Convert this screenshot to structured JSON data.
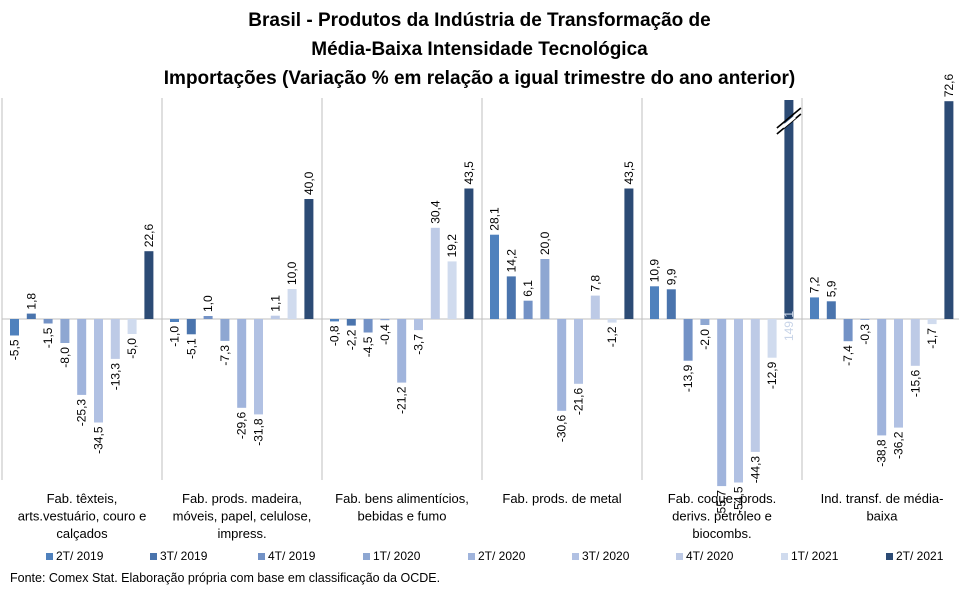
{
  "chart_data": {
    "type": "bar",
    "title_lines": [
      "Brasil - Produtos da Indústria de Transformação de",
      "Média-Baixa Intensidade Tecnológica",
      "Importações (Variação % em relação a igual trimestre do ano anterior)"
    ],
    "series": [
      {
        "name": "2T/ 2019",
        "color": "#4f81bd"
      },
      {
        "name": "3T/ 2019",
        "color": "#4a74ad"
      },
      {
        "name": "4T/ 2019",
        "color": "#7392c6"
      },
      {
        "name": "1T/ 2020",
        "color": "#8ea7d2"
      },
      {
        "name": "2T/ 2020",
        "color": "#a0b4dc"
      },
      {
        "name": "3T/ 2020",
        "color": "#b1c1e3"
      },
      {
        "name": "4T/ 2020",
        "color": "#bdcae6"
      },
      {
        "name": "1T/ 2021",
        "color": "#d0dbee"
      },
      {
        "name": "2T/ 2021",
        "color": "#2c4b75"
      }
    ],
    "groups": [
      {
        "label_lines": [
          "Fab. têxteis,",
          "arts.vestuário, couro e",
          "calçados"
        ],
        "values": [
          -5.5,
          1.8,
          -1.5,
          -8.0,
          -25.3,
          -34.5,
          -13.3,
          -5.0,
          22.6
        ],
        "labels": [
          "-5,5",
          "1,8",
          "-1,5",
          "-8,0",
          "-25,3",
          "-34,5",
          "-13,3",
          "-5,0",
          "22,6"
        ]
      },
      {
        "label_lines": [
          "Fab. prods. madeira,",
          "móveis, papel, celulose,",
          "impress."
        ],
        "values": [
          -1.0,
          -5.1,
          1.0,
          -7.3,
          -29.6,
          -31.8,
          1.1,
          10.0,
          40.0
        ],
        "labels": [
          "-1,0",
          "-5,1",
          "1,0",
          "-7,3",
          "-29,6",
          "-31,8",
          "1,1",
          "10,0",
          "40,0"
        ]
      },
      {
        "label_lines": [
          "Fab. bens alimentícios,",
          "bebidas e fumo"
        ],
        "values": [
          -0.8,
          -2.2,
          -4.5,
          -0.4,
          -21.2,
          -3.7,
          30.4,
          19.2,
          43.5
        ],
        "labels": [
          "-0,8",
          "-2,2",
          "-4,5",
          "-0,4",
          "-21,2",
          "-3,7",
          "30,4",
          "19,2",
          "43,5"
        ]
      },
      {
        "label_lines": [
          "Fab. prods. de metal"
        ],
        "values": [
          28.1,
          14.2,
          6.1,
          20.0,
          -30.6,
          -21.6,
          7.8,
          -1.2,
          43.5
        ],
        "labels": [
          "28,1",
          "14,2",
          "6,1",
          "20,0",
          "-30,6",
          "-21,6",
          "7,8",
          "-1,2",
          "43,5"
        ]
      },
      {
        "label_lines": [
          "Fab. coque, prods.",
          "derivs. petróleo e",
          "biocombs."
        ],
        "values": [
          10.9,
          9.9,
          -13.9,
          -2.0,
          -55.7,
          -54.5,
          -44.3,
          -12.9,
          149.1
        ],
        "labels": [
          "10,9",
          "9,9",
          "-13,9",
          "-2,0",
          "-55,7",
          "-54,5",
          "-44,3",
          "-12,9",
          "149,1"
        ],
        "axis_break": true
      },
      {
        "label_lines": [
          "Ind. transf. de média-",
          "baixa"
        ],
        "values": [
          7.2,
          5.9,
          -7.4,
          -0.3,
          -38.8,
          -36.2,
          -15.6,
          -1.7,
          72.6
        ],
        "labels": [
          "7,2",
          "5,9",
          "-7,4",
          "-0,3",
          "-38,8",
          "-36,2",
          "-15,6",
          "-1,7",
          "72,6"
        ]
      }
    ],
    "legend_position": "bottom",
    "grid": false
  },
  "source_text": "Fonte: Comex Stat. Elaboração própria com base em classificação da OCDE."
}
